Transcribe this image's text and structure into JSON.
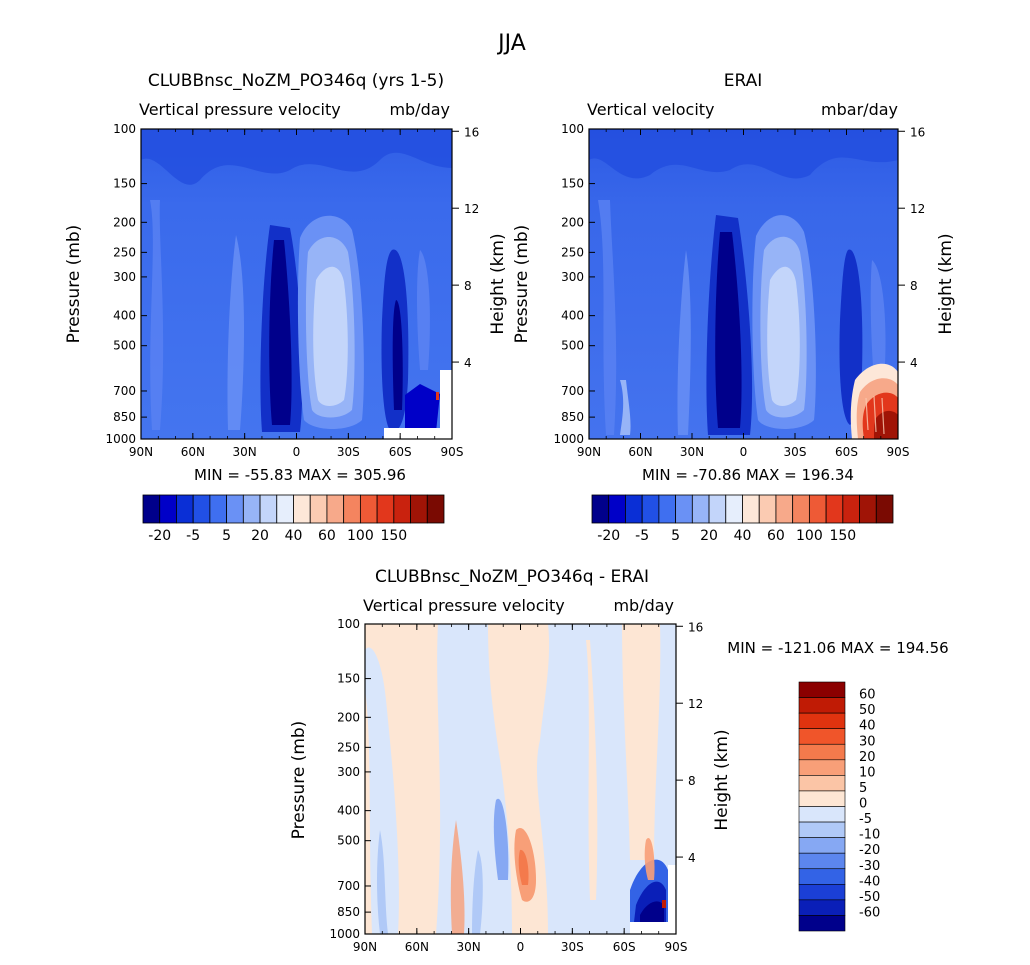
{
  "figure": {
    "main_title": "JJA",
    "pressure_ticks": [
      "100",
      "150",
      "200",
      "250",
      "300",
      "400",
      "500",
      "700",
      "850",
      "1000"
    ],
    "lat_ticks": [
      "90N",
      "60N",
      "30N",
      "0",
      "30S",
      "60S",
      "90S"
    ],
    "height_ticks": [
      "16",
      "12",
      "8",
      "4"
    ],
    "y_label": "Pressure (mb)",
    "y2_label": "Height (km)"
  },
  "chart_data": [
    {
      "type": "heatmap",
      "title": "CLUBBnsc_NoZM_PO346q (yrs 1-5)",
      "left_label": "Vertical pressure velocity",
      "right_label": "mb/day",
      "stats": "MIN = -55.83   MAX = 305.96",
      "min": -55.83,
      "max": 305.96,
      "xlabel": "",
      "ylabel": "Pressure (mb)",
      "y2label": "Height (km)",
      "x_range": [
        "90N",
        "90S"
      ],
      "y_range_mb": [
        1000,
        100
      ],
      "colorbar": {
        "orientation": "horizontal",
        "levels": [
          -20,
          -15,
          -10,
          -5,
          -2,
          2,
          5,
          10,
          20,
          30,
          40,
          50,
          60,
          80,
          100,
          120,
          150
        ],
        "tick_labels": [
          "-20",
          "-5",
          "5",
          "20",
          "40",
          "60",
          "100",
          "150"
        ],
        "colors": [
          "#00008b",
          "#0000c8",
          "#0a2fd6",
          "#2150e6",
          "#3f6ff0",
          "#6a91f5",
          "#97b4f7",
          "#c3d5fa",
          "#e6eefc",
          "#fde7d8",
          "#fbcbb2",
          "#f7a98a",
          "#f4845f",
          "#ee5a36",
          "#e2371c",
          "#c9220e",
          "#a01406",
          "#7a0a02"
        ]
      }
    },
    {
      "type": "heatmap",
      "title": "ERAI",
      "left_label": "Vertical velocity",
      "right_label": "mbar/day",
      "stats": "MIN = -70.86   MAX = 196.34",
      "min": -70.86,
      "max": 196.34,
      "xlabel": "",
      "ylabel": "Pressure (mb)",
      "y2label": "Height (km)",
      "x_range": [
        "90N",
        "90S"
      ],
      "y_range_mb": [
        1000,
        100
      ],
      "colorbar": {
        "orientation": "horizontal",
        "levels": [
          -20,
          -15,
          -10,
          -5,
          -2,
          2,
          5,
          10,
          20,
          30,
          40,
          50,
          60,
          80,
          100,
          120,
          150
        ],
        "tick_labels": [
          "-20",
          "-5",
          "5",
          "20",
          "40",
          "60",
          "100",
          "150"
        ],
        "colors": [
          "#00008b",
          "#0000c8",
          "#0a2fd6",
          "#2150e6",
          "#3f6ff0",
          "#6a91f5",
          "#97b4f7",
          "#c3d5fa",
          "#e6eefc",
          "#fde7d8",
          "#fbcbb2",
          "#f7a98a",
          "#f4845f",
          "#ee5a36",
          "#e2371c",
          "#c9220e",
          "#a01406",
          "#7a0a02"
        ]
      }
    },
    {
      "type": "heatmap",
      "title": "CLUBBnsc_NoZM_PO346q - ERAI",
      "left_label": "Vertical pressure velocity",
      "right_label": "mb/day",
      "stats": "MIN = -121.06   MAX = 194.56",
      "min": -121.06,
      "max": 194.56,
      "xlabel": "",
      "ylabel": "Pressure (mb)",
      "y2label": "Height (km)",
      "x_range": [
        "90N",
        "90S"
      ],
      "y_range_mb": [
        1000,
        100
      ],
      "colorbar": {
        "orientation": "vertical",
        "tick_labels": [
          "60",
          "50",
          "40",
          "30",
          "20",
          "10",
          "5",
          "0",
          "-5",
          "-10",
          "-20",
          "-30",
          "-40",
          "-50",
          "-60"
        ],
        "colors": [
          "#8b0000",
          "#c01b05",
          "#e0330f",
          "#f0552a",
          "#f47a4c",
          "#f89f78",
          "#fbc5a6",
          "#fde6d4",
          "#d9e6fb",
          "#b0c9f7",
          "#86a8f3",
          "#5c86ee",
          "#3363e6",
          "#1b3fd6",
          "#0a1fb8",
          "#00008b"
        ]
      }
    }
  ]
}
